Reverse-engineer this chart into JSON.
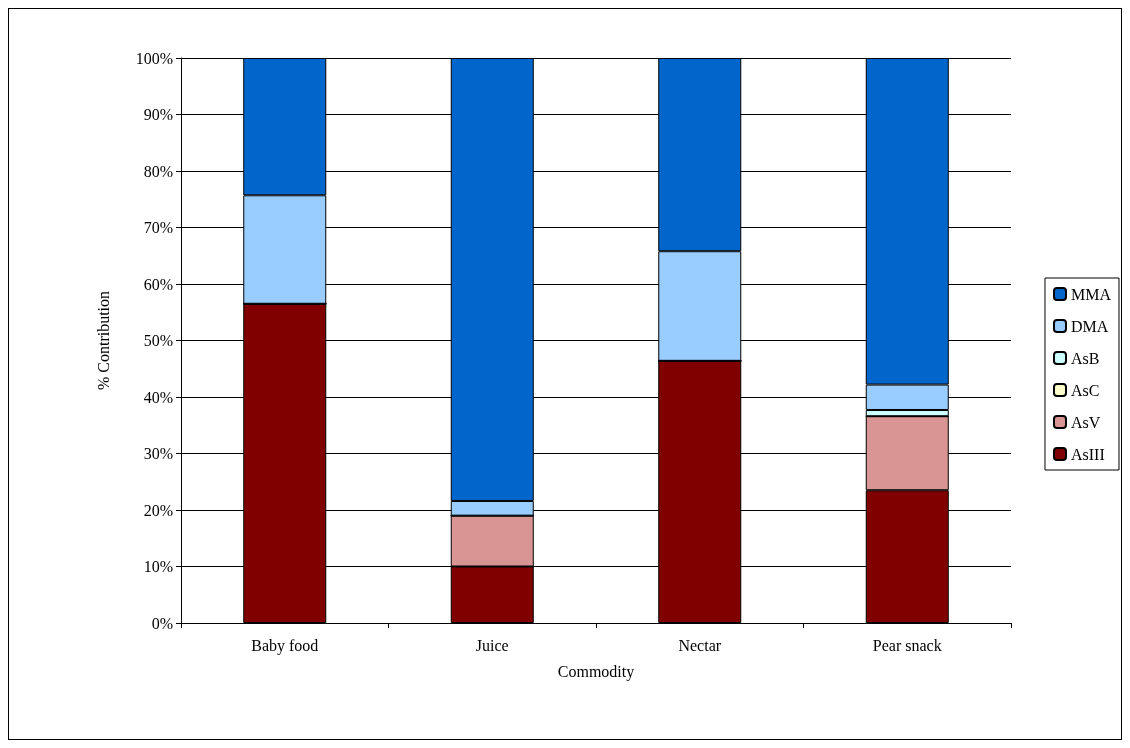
{
  "chart_data": {
    "type": "bar",
    "stacked": true,
    "xlabel": "Commodity",
    "ylabel": "% Contribution",
    "categories": [
      "Baby food",
      "Juice",
      "Nectar",
      "Pear snack"
    ],
    "series": [
      {
        "name": "AsIII",
        "color": "#800000",
        "values": [
          56.5,
          10.0,
          46.4,
          23.5
        ]
      },
      {
        "name": "AsV",
        "color": "#d99594",
        "values": [
          0,
          9.0,
          0,
          13.1
        ]
      },
      {
        "name": "AsC",
        "color": "#ffffcc",
        "values": [
          0,
          0,
          0,
          0
        ]
      },
      {
        "name": "AsB",
        "color": "#ccffff",
        "values": [
          0,
          0,
          0,
          1.1
        ]
      },
      {
        "name": "DMA",
        "color": "#99ccff",
        "values": [
          19.2,
          2.6,
          19.4,
          4.5
        ]
      },
      {
        "name": "MMA",
        "color": "#0066cc",
        "values": [
          24.3,
          78.4,
          34.2,
          57.8
        ]
      }
    ],
    "ylim": [
      0,
      100
    ],
    "yticks": [
      {
        "value": 0,
        "label": "0%"
      },
      {
        "value": 10,
        "label": "10%"
      },
      {
        "value": 20,
        "label": "20%"
      },
      {
        "value": 30,
        "label": "30%"
      },
      {
        "value": 40,
        "label": "40%"
      },
      {
        "value": 50,
        "label": "50%"
      },
      {
        "value": 60,
        "label": "60%"
      },
      {
        "value": 70,
        "label": "70%"
      },
      {
        "value": 80,
        "label": "80%"
      },
      {
        "value": 90,
        "label": "90%"
      },
      {
        "value": 100,
        "label": "100%"
      }
    ],
    "grid": "y",
    "legend": "right"
  }
}
